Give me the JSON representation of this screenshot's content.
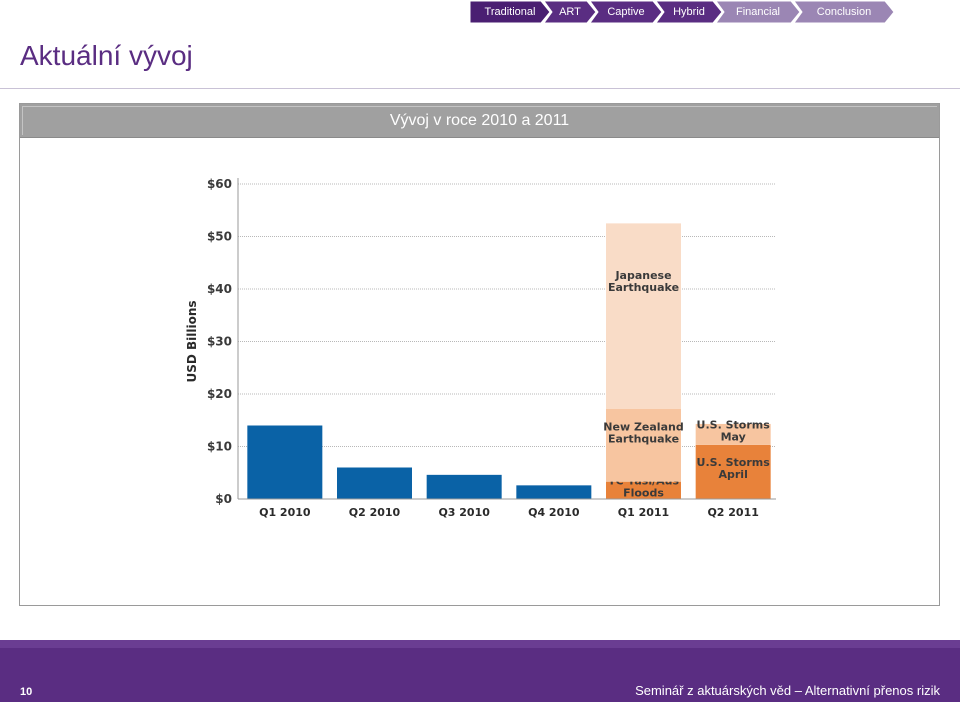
{
  "nav": {
    "steps": [
      {
        "label": "Traditional",
        "color": "#4a1f72",
        "dim": false
      },
      {
        "label": "ART",
        "color": "#5a2d82",
        "dim": false
      },
      {
        "label": "Captive",
        "color": "#5a2d82",
        "dim": false
      },
      {
        "label": "Hybrid",
        "color": "#5a2d82",
        "dim": false
      },
      {
        "label": "Financial",
        "color": "#9b86b4",
        "dim": true
      },
      {
        "label": "Conclusion",
        "color": "#9b86b4",
        "dim": true
      }
    ]
  },
  "page_title": "Aktuální vývoj",
  "panel_title": "Vývoj v roce 2010 a 2011",
  "footer": {
    "page_number": "10",
    "text": "Seminář z aktuárských věd – Alternativní přenos rizik"
  },
  "chart_data": {
    "type": "bar",
    "ylabel": "USD Billions",
    "ylim": [
      0,
      60
    ],
    "yticks": [
      0,
      10,
      20,
      30,
      40,
      50,
      60
    ],
    "ytick_labels": [
      "$0",
      "$10",
      "$20",
      "$30",
      "$40",
      "$50",
      "$60"
    ],
    "grid": true,
    "categories": [
      "Q1 2010",
      "Q2 2010",
      "Q3 2010",
      "Q4 2010",
      "Q1 2011",
      "Q2 2011"
    ],
    "bars": [
      {
        "category": "Q1 2010",
        "segments": [
          {
            "value": 14,
            "color": "#0a62a6",
            "label": ""
          }
        ]
      },
      {
        "category": "Q2 2010",
        "segments": [
          {
            "value": 6,
            "color": "#0a62a6",
            "label": ""
          }
        ]
      },
      {
        "category": "Q3 2010",
        "segments": [
          {
            "value": 4.6,
            "color": "#0a62a6",
            "label": ""
          }
        ]
      },
      {
        "category": "Q4 2010",
        "segments": [
          {
            "value": 2.6,
            "color": "#0a62a6",
            "label": ""
          }
        ]
      },
      {
        "category": "Q1 2011",
        "segments": [
          {
            "value": 3.3,
            "color": "#e8823a",
            "label": "TC Yasi/Aus Floods"
          },
          {
            "value": 13.9,
            "color": "#f7c5a0",
            "label": "New Zealand Earthquake"
          },
          {
            "value": 35.3,
            "color": "#f9dcc7",
            "label": "Japanese Earthquake"
          }
        ]
      },
      {
        "category": "Q2 2011",
        "segments": [
          {
            "value": 10.3,
            "color": "#e8823a",
            "label": "U.S. Storms April"
          },
          {
            "value": 4.0,
            "color": "#f7c5a0",
            "label": "U.S. Storms May"
          }
        ]
      }
    ]
  }
}
